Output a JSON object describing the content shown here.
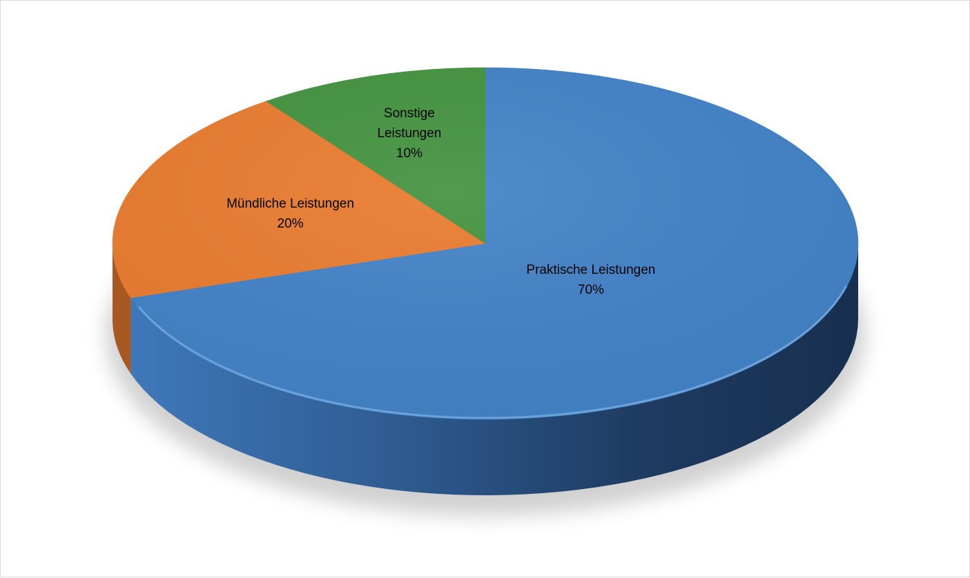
{
  "chart_data": {
    "type": "pie",
    "style": "3d",
    "legend": "none",
    "slices": [
      {
        "label": "Praktische Leistungen",
        "value": 70,
        "value_label": "70%",
        "color": "#4282c7"
      },
      {
        "label": "Mündliche Leistungen",
        "value": 20,
        "value_label": "20%",
        "color": "#e97b2e"
      },
      {
        "label": "Sonstige Leistungen",
        "value": 10,
        "value_label": "10%",
        "color": "#43923f"
      }
    ]
  }
}
